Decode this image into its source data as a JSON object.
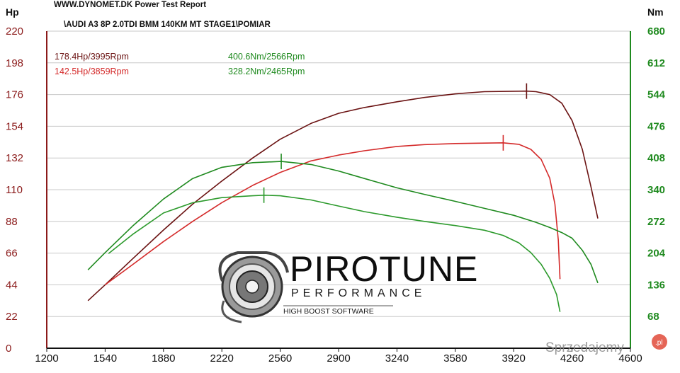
{
  "header": {
    "line1": "WWW.DYNOMET.DK  Power Test Report",
    "line2": "\\AUDI A3 8P 2.0TDI BMM 140KM MT STAGE1\\POMIAR"
  },
  "logo": {
    "main": "PIROTUNE",
    "sub": "PERFORMANCE",
    "tag": "HIGH BOOST SOFTWARE",
    "icon": "turbocharger-icon"
  },
  "watermark": {
    "text": "Sprzedajemy",
    "badge": ".pl"
  },
  "colors": {
    "power_tuned": "#6b1313",
    "power_stock": "#d42a2a",
    "torque_tuned": "#1f8a1f",
    "torque_stock": "#2c9a2c",
    "hp_axis": "#8b1a1a",
    "nm_axis": "#1f8a1f",
    "grid": "#c8c8c8"
  },
  "chart_data": {
    "type": "line",
    "xlabel": "",
    "y_left_label": "Hp",
    "y_right_label": "Nm",
    "xlim": [
      1200,
      4600
    ],
    "ylim_left": [
      0,
      220
    ],
    "ylim_right": [
      0,
      680
    ],
    "x_ticks": [
      "1200",
      "1540",
      "1880",
      "2220",
      "2560",
      "2900",
      "3240",
      "3580",
      "3920",
      "4260",
      "4600"
    ],
    "y_left_ticks": [
      "0",
      "22",
      "44",
      "66",
      "88",
      "110",
      "132",
      "154",
      "176",
      "198",
      "220"
    ],
    "y_right_ticks": [
      "68",
      "136",
      "204",
      "272",
      "340",
      "408",
      "476",
      "544",
      "612",
      "680"
    ],
    "grid": "horizontal",
    "peak_labels": [
      {
        "text": "178.4Hp/3995Rpm",
        "color": "#6b1313"
      },
      {
        "text": "142.5Hp/3859Rpm",
        "color": "#d42a2a"
      },
      {
        "text": "400.6Nm/2566Rpm",
        "color": "#1f8a1f"
      },
      {
        "text": "328.2Nm/2465Rpm",
        "color": "#1f8a1f"
      }
    ],
    "series": [
      {
        "axis": "left",
        "color": "#6b1313",
        "peak": [
          3995,
          178.4
        ],
        "points": [
          [
            1440,
            33
          ],
          [
            1540,
            44
          ],
          [
            1700,
            62
          ],
          [
            1880,
            82
          ],
          [
            2050,
            100
          ],
          [
            2220,
            116
          ],
          [
            2400,
            132
          ],
          [
            2560,
            145
          ],
          [
            2740,
            156
          ],
          [
            2900,
            163
          ],
          [
            3050,
            167
          ],
          [
            3240,
            171
          ],
          [
            3400,
            174
          ],
          [
            3580,
            176.5
          ],
          [
            3750,
            178
          ],
          [
            3920,
            178.3
          ],
          [
            3995,
            178.4
          ],
          [
            4050,
            178
          ],
          [
            4130,
            176
          ],
          [
            4200,
            170
          ],
          [
            4260,
            158
          ],
          [
            4320,
            138
          ],
          [
            4370,
            112
          ],
          [
            4410,
            90
          ]
        ]
      },
      {
        "axis": "left",
        "color": "#d42a2a",
        "peak": [
          3859,
          142.5
        ],
        "points": [
          [
            1540,
            44
          ],
          [
            1700,
            58
          ],
          [
            1880,
            74
          ],
          [
            2050,
            88
          ],
          [
            2220,
            101
          ],
          [
            2400,
            113
          ],
          [
            2560,
            122
          ],
          [
            2740,
            130
          ],
          [
            2900,
            134
          ],
          [
            3050,
            137
          ],
          [
            3240,
            140
          ],
          [
            3400,
            141.3
          ],
          [
            3580,
            142
          ],
          [
            3750,
            142.3
          ],
          [
            3859,
            142.5
          ],
          [
            3950,
            141.5
          ],
          [
            4020,
            138
          ],
          [
            4080,
            131
          ],
          [
            4130,
            118
          ],
          [
            4160,
            100
          ],
          [
            4180,
            75
          ],
          [
            4190,
            48
          ]
        ]
      },
      {
        "axis": "right",
        "color": "#1f8a1f",
        "peak": [
          2566,
          400.6
        ],
        "points": [
          [
            1440,
            168
          ],
          [
            1540,
            205
          ],
          [
            1700,
            262
          ],
          [
            1880,
            320
          ],
          [
            2050,
            364
          ],
          [
            2220,
            388
          ],
          [
            2400,
            398
          ],
          [
            2566,
            400.6
          ],
          [
            2740,
            394
          ],
          [
            2900,
            380
          ],
          [
            3050,
            364
          ],
          [
            3240,
            344
          ],
          [
            3400,
            330
          ],
          [
            3580,
            315
          ],
          [
            3750,
            300
          ],
          [
            3920,
            285
          ],
          [
            4050,
            270
          ],
          [
            4130,
            259
          ],
          [
            4200,
            248
          ],
          [
            4260,
            236
          ],
          [
            4320,
            210
          ],
          [
            4370,
            180
          ],
          [
            4410,
            140
          ]
        ]
      },
      {
        "axis": "right",
        "color": "#2c9a2c",
        "peak": [
          2465,
          328.2
        ],
        "points": [
          [
            1560,
            203
          ],
          [
            1700,
            244
          ],
          [
            1880,
            290
          ],
          [
            2050,
            312
          ],
          [
            2220,
            323
          ],
          [
            2400,
            327
          ],
          [
            2465,
            328.2
          ],
          [
            2560,
            327
          ],
          [
            2740,
            318
          ],
          [
            2900,
            305
          ],
          [
            3050,
            293
          ],
          [
            3240,
            281
          ],
          [
            3400,
            272
          ],
          [
            3580,
            263
          ],
          [
            3750,
            253
          ],
          [
            3859,
            242
          ],
          [
            3950,
            226
          ],
          [
            4020,
            205
          ],
          [
            4080,
            180
          ],
          [
            4130,
            150
          ],
          [
            4170,
            115
          ],
          [
            4190,
            78
          ]
        ]
      }
    ]
  }
}
